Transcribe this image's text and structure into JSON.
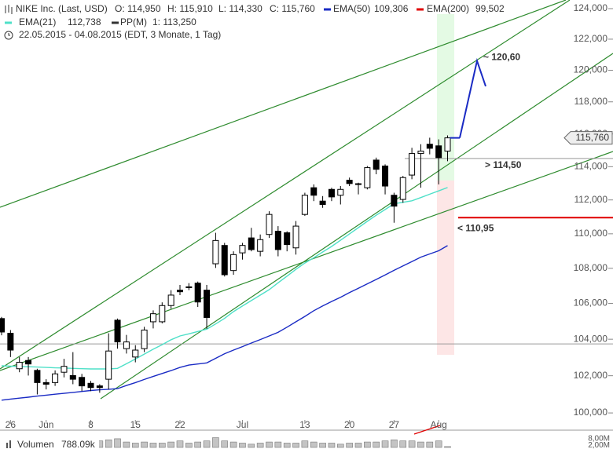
{
  "chart_data": {
    "type": "candlestick",
    "header": {
      "title": "NIKE Inc. (Last, USD)",
      "open": "O: 114,950",
      "high": "H: 115,910",
      "low": "L: 114,330",
      "close": "C: 115,760",
      "period": "22.05.2015 - 04.08.2015 (EDT, 3 Monate, 1 Tag)"
    },
    "categories": [
      null,
      "26",
      null,
      null,
      null,
      "Jun",
      null,
      null,
      null,
      null,
      "8",
      null,
      null,
      null,
      null,
      "15",
      null,
      null,
      null,
      null,
      "22",
      null,
      null,
      null,
      null,
      null,
      null,
      "Jul",
      null,
      null,
      null,
      null,
      null,
      null,
      "13",
      null,
      null,
      null,
      null,
      "20",
      null,
      null,
      null,
      null,
      "27",
      null,
      null,
      null,
      null,
      "Aug",
      null
    ],
    "open": [
      105.15,
      104.33,
      102.38,
      102.83,
      102.29,
      101.63,
      101.63,
      102.19,
      102.01,
      101.91,
      101.59,
      101.45,
      101.81,
      105.06,
      103.48,
      103.02,
      103.48,
      104.97,
      104.97,
      105.88,
      106.75,
      106.94,
      107.15,
      106.75,
      108.26,
      109.32,
      107.87,
      108.89,
      109.76,
      108.98,
      109.96,
      110.15,
      110.06,
      109.18,
      111.14,
      112.73,
      111.93,
      112.63,
      112.28,
      113.18,
      112.93,
      112.73,
      114.4,
      114.04,
      112.28,
      112.03,
      113.49,
      114.8,
      115.37,
      115.27,
      114.95
    ],
    "high": [
      105.24,
      104.51,
      103.02,
      103.02,
      102.38,
      101.81,
      102.29,
      102.92,
      103.29,
      102.1,
      101.72,
      101.54,
      104.33,
      105.15,
      104.24,
      103.67,
      104.69,
      105.61,
      106.06,
      106.75,
      107.05,
      107.15,
      107.24,
      107.05,
      110.06,
      109.47,
      108.98,
      109.47,
      110.35,
      109.96,
      111.33,
      110.45,
      110.15,
      110.75,
      112.43,
      112.93,
      112.23,
      112.73,
      112.83,
      113.34,
      113.03,
      114.04,
      114.55,
      114.14,
      112.43,
      113.44,
      115.15,
      115.37,
      115.77,
      115.67,
      115.91
    ],
    "low": [
      104.22,
      103.02,
      102.19,
      102.01,
      100.99,
      101.26,
      101.45,
      101.91,
      101.54,
      101.17,
      101.17,
      101.08,
      101.26,
      103.48,
      103.21,
      102.73,
      103.29,
      104.6,
      104.88,
      105.7,
      106.47,
      106.75,
      105.8,
      104.58,
      108.02,
      107.53,
      107.63,
      108.5,
      108.98,
      108.69,
      109.76,
      108.69,
      108.98,
      108.79,
      111.05,
      111.93,
      111.53,
      111.93,
      111.73,
      112.83,
      112.33,
      112.63,
      113.54,
      112.33,
      110.65,
      111.83,
      113.24,
      112.73,
      114.75,
      112.93,
      114.33
    ],
    "close": [
      104.4,
      103.4,
      102.73,
      102.64,
      101.63,
      101.54,
      102.1,
      102.51,
      101.81,
      101.45,
      101.36,
      101.36,
      103.35,
      103.85,
      103.85,
      103.4,
      104.51,
      105.42,
      105.88,
      106.47,
      106.66,
      106.9,
      106.08,
      105.21,
      109.61,
      107.63,
      108.79,
      109.32,
      109.08,
      109.66,
      111.14,
      109.08,
      109.37,
      110.45,
      112.28,
      112.28,
      111.73,
      112.18,
      112.63,
      112.98,
      112.97,
      113.94,
      113.84,
      112.83,
      111.63,
      113.34,
      114.8,
      114.95,
      115.12,
      114.55,
      115.76
    ],
    "last_label": "115,760",
    "log": true,
    "ylim": [
      99.42,
      124.57
    ],
    "yticks": [
      {
        "value": 100,
        "label": "100,000"
      },
      {
        "value": 102,
        "label": "102,000"
      },
      {
        "value": 104,
        "label": "104,000"
      },
      {
        "value": 106,
        "label": "106,000"
      },
      {
        "value": 108,
        "label": "108,000"
      },
      {
        "value": 110,
        "label": "110,000"
      },
      {
        "value": 112,
        "label": "112,000"
      },
      {
        "value": 114,
        "label": "114,000"
      },
      {
        "value": 116,
        "label": "116,000"
      },
      {
        "value": 118,
        "label": "118,000"
      },
      {
        "value": 120,
        "label": "120,000"
      },
      {
        "value": 122,
        "label": "122,000"
      },
      {
        "value": 124,
        "label": "124,000"
      }
    ],
    "indicators": [
      {
        "name": "EMA(50)",
        "color": "#1a2bc4",
        "label": "109,306",
        "values": [
          100.68,
          100.74,
          100.79,
          100.84,
          100.9,
          100.95,
          101.0,
          101.05,
          101.1,
          101.15,
          101.2,
          101.24,
          101.27,
          101.3,
          101.47,
          101.63,
          101.8,
          101.96,
          102.12,
          102.28,
          102.45,
          102.58,
          102.64,
          102.7,
          102.95,
          103.2,
          103.4,
          103.59,
          103.79,
          103.98,
          104.18,
          104.38,
          104.67,
          104.97,
          105.27,
          105.59,
          105.86,
          106.11,
          106.35,
          106.61,
          106.86,
          107.11,
          107.36,
          107.62,
          107.88,
          108.14,
          108.39,
          108.64,
          108.83,
          109.01,
          109.31
        ]
      },
      {
        "name": "EMA(200)",
        "color": "#e00000",
        "label": "99,502"
      },
      {
        "name": "EMA(21)",
        "color": "#4fe0c8",
        "label": "112,738",
        "values": [
          102.54,
          102.52,
          102.5,
          102.49,
          102.47,
          102.45,
          102.43,
          102.42,
          102.4,
          102.38,
          102.37,
          102.37,
          102.37,
          102.4,
          102.65,
          102.91,
          103.18,
          103.45,
          103.7,
          103.97,
          104.18,
          104.3,
          104.43,
          104.56,
          104.85,
          105.16,
          105.54,
          105.85,
          106.16,
          106.47,
          106.78,
          107.17,
          107.55,
          107.94,
          108.3,
          108.61,
          108.94,
          109.26,
          109.62,
          109.99,
          110.36,
          110.73,
          111.09,
          111.43,
          111.77,
          111.86,
          111.95,
          112.14,
          112.34,
          112.54,
          112.74
        ]
      },
      {
        "name": "PP(M)",
        "color": "#333333",
        "label": "1: 113,250"
      }
    ],
    "reference_lines": [
      103.74
    ],
    "annotations": [
      {
        "text": "~ 120,60",
        "value": 120.6,
        "color": "#1a2bc4"
      },
      {
        "text": "> 114,50",
        "value": 114.5,
        "color": "#1a2bc4",
        "line_color": "#999999"
      },
      {
        "text": "< 110,95",
        "value": 110.95,
        "color": "#d40000",
        "line_color": "#e00000"
      }
    ],
    "forecast_end": 118.98,
    "volume": {
      "name": "Volumen",
      "last_label": "788.09k",
      "color": "#c4c4c4",
      "values": [
        5,
        4,
        4,
        3,
        5,
        4,
        3,
        4,
        5,
        4,
        4,
        6,
        7,
        8,
        5,
        4,
        5,
        4,
        4,
        5,
        6,
        4,
        5,
        6,
        9,
        6,
        5,
        4,
        3,
        4,
        5,
        5,
        4,
        4,
        6,
        5,
        4,
        4,
        3,
        4,
        4,
        5,
        5,
        6,
        7,
        6,
        6,
        5,
        5,
        6,
        0.79
      ],
      "ylim": [
        0,
        13
      ],
      "yticks": [
        {
          "value": 8,
          "label": "8,00M"
        },
        {
          "value": 2,
          "label": "2,00M"
        }
      ]
    }
  }
}
